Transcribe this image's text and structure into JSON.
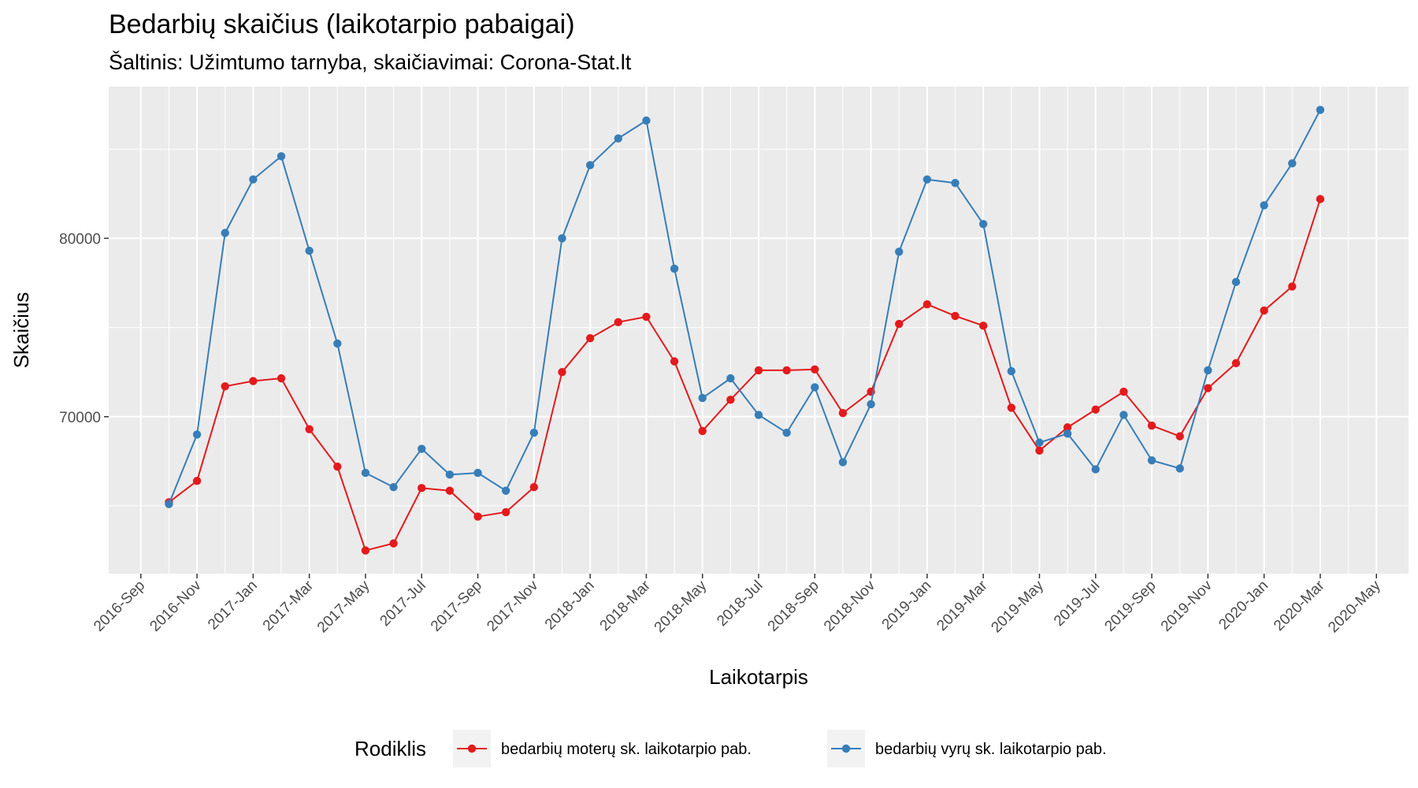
{
  "chart_data": {
    "type": "line",
    "title": "Bedarbių skaičius (laikotarpio pabaigai)",
    "subtitle": "Šaltinis: Užimtumo tarnyba, skaičiavimai: Corona-Stat.lt",
    "xlabel": "Laikotarpis",
    "ylabel": "Skaičius",
    "x_tick_labels": [
      "2016-Sep",
      "2016-Nov",
      "2017-Jan",
      "2017-Mar",
      "2017-May",
      "2017-Jul",
      "2017-Sep",
      "2017-Nov",
      "2018-Jan",
      "2018-Mar",
      "2018-May",
      "2018-Jul",
      "2018-Sep",
      "2018-Nov",
      "2019-Jan",
      "2019-Mar",
      "2019-May",
      "2019-Jul",
      "2019-Sep",
      "2019-Nov",
      "2020-Jan",
      "2020-Mar",
      "2020-May"
    ],
    "y_ticks": [
      70000,
      80000
    ],
    "y_tick_labels": [
      "70000",
      "80000"
    ],
    "ylim": [
      61200,
      88500
    ],
    "grid": true,
    "legend_position": "bottom",
    "legend_title": "Rodiklis",
    "x": [
      "2016-Oct",
      "2016-Nov",
      "2016-Dec",
      "2017-Jan",
      "2017-Feb",
      "2017-Mar",
      "2017-Apr",
      "2017-May",
      "2017-Jun",
      "2017-Jul",
      "2017-Aug",
      "2017-Sep",
      "2017-Oct",
      "2017-Nov",
      "2017-Dec",
      "2018-Jan",
      "2018-Feb",
      "2018-Mar",
      "2018-Apr",
      "2018-May",
      "2018-Jun",
      "2018-Jul",
      "2018-Aug",
      "2018-Sep",
      "2018-Oct",
      "2018-Nov",
      "2018-Dec",
      "2019-Jan",
      "2019-Feb",
      "2019-Mar",
      "2019-Apr",
      "2019-May",
      "2019-Jun",
      "2019-Jul",
      "2019-Aug",
      "2019-Sep",
      "2019-Oct",
      "2019-Nov",
      "2019-Dec",
      "2020-Jan",
      "2020-Feb",
      "2020-Mar"
    ],
    "series": [
      {
        "name": "bedarbių moterų sk. laikotarpio pab.",
        "color": "#e41a1c",
        "values": [
          65200,
          66400,
          71700,
          72000,
          72150,
          69300,
          67200,
          62500,
          62900,
          66000,
          65850,
          64400,
          64650,
          66050,
          72500,
          74400,
          75300,
          75600,
          73100,
          69200,
          70950,
          72600,
          72600,
          72650,
          70200,
          71400,
          75200,
          76300,
          75650,
          75100,
          70500,
          68100,
          69400,
          70400,
          71400,
          69500,
          68900,
          71600,
          73000,
          75950,
          77300,
          82200
        ]
      },
      {
        "name": "bedarbių vyrų sk. laikotarpio pab.",
        "color": "#377eb8",
        "values": [
          65100,
          69000,
          80300,
          83300,
          84600,
          79300,
          74100,
          66850,
          66050,
          68200,
          66750,
          66850,
          65850,
          69100,
          80000,
          84100,
          85600,
          86600,
          78300,
          71050,
          72150,
          70100,
          69100,
          71650,
          67450,
          70700,
          79250,
          83300,
          83100,
          80800,
          72550,
          68550,
          69050,
          67050,
          70100,
          67550,
          67100,
          72600,
          77550,
          81850,
          84200,
          87200
        ]
      }
    ]
  }
}
